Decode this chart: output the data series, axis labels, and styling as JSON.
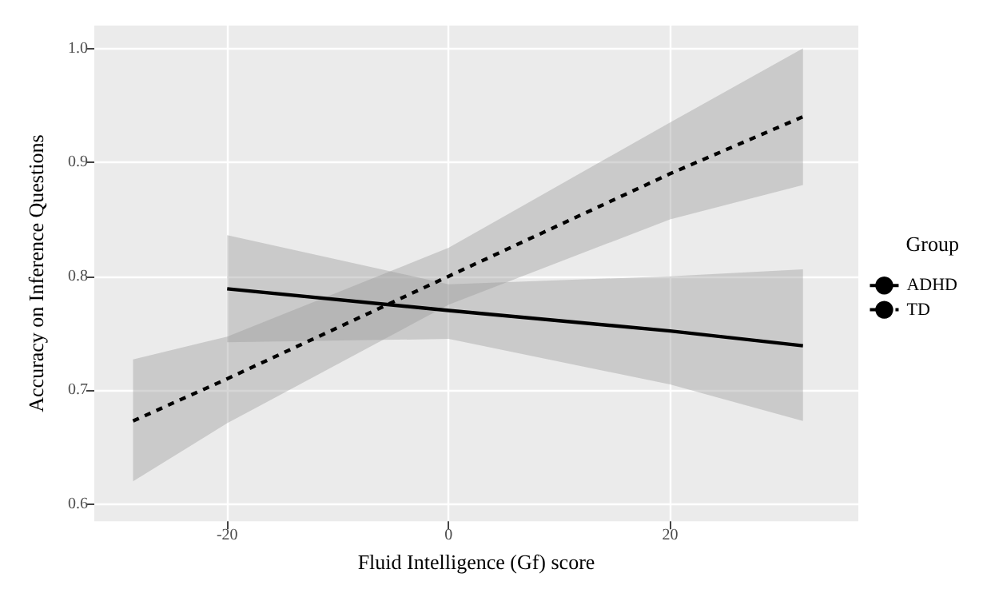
{
  "chart_data": {
    "type": "line",
    "xlabel": "Fluid Intelligence (Gf) score",
    "ylabel": "Accuracy on Inference Questions",
    "legend_title": "Group",
    "legend": "right",
    "grid": true,
    "marker": "none",
    "xlim": [
      -32,
      37
    ],
    "xticks": [
      -20,
      0,
      20
    ],
    "ylim": [
      0.585,
      1.02
    ],
    "yticks": [
      0.6,
      0.7,
      0.8,
      0.9,
      {
        "value": 1,
        "label": "1.0"
      }
    ],
    "series": [
      {
        "name": "ADHD",
        "color": "#000000",
        "line_style": "solid",
        "x": [
          -20,
          0,
          20,
          32
        ],
        "values": [
          0.789,
          0.77,
          0.752,
          0.739
        ],
        "lower": [
          0.742,
          0.745,
          0.705,
          0.673
        ],
        "upper": [
          0.836,
          0.793,
          0.8,
          0.806
        ]
      },
      {
        "name": "TD",
        "color": "#000000",
        "line_style": "dashed",
        "x": [
          -28.5,
          -20,
          0,
          20,
          32
        ],
        "values": [
          0.673,
          0.71,
          0.8,
          0.89,
          0.94
        ],
        "lower": [
          0.62,
          0.671,
          0.775,
          0.85,
          0.88
        ],
        "upper": [
          0.727,
          0.747,
          0.825,
          0.935,
          1.0
        ]
      }
    ]
  }
}
